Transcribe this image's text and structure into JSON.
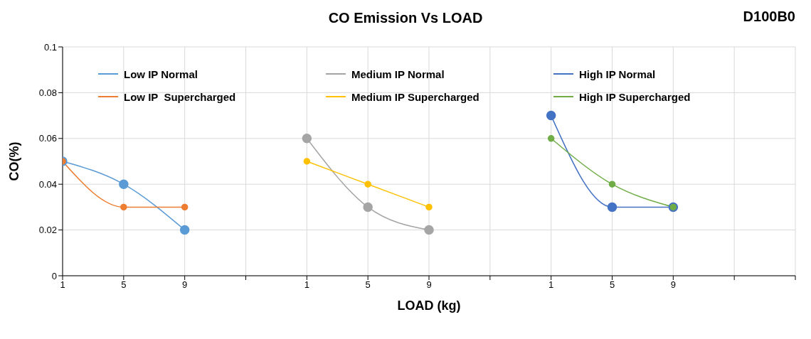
{
  "chart_data": {
    "type": "line",
    "title": "CO Emission  Vs LOAD",
    "xlabel": "LOAD (kg)",
    "ylabel": "CO(%)",
    "annotations": [
      "D100B0"
    ],
    "categories": [
      "1",
      "5",
      "9",
      null,
      "1",
      "5",
      "9",
      null,
      "1",
      "5",
      "9",
      null,
      null
    ],
    "series": [
      {
        "name": "Low IP Normal",
        "color": "#5b9bd5",
        "values": [
          0.05,
          0.04,
          0.02,
          null,
          null,
          null,
          null,
          null,
          null,
          null,
          null,
          null,
          null
        ]
      },
      {
        "name": "Low IP  Supercharged",
        "color": "#ed7d31",
        "values": [
          0.05,
          0.03,
          0.03,
          null,
          null,
          null,
          null,
          null,
          null,
          null,
          null,
          null,
          null
        ]
      },
      {
        "name": "Medium IP Normal",
        "color": "#a5a5a5",
        "values": [
          null,
          null,
          null,
          null,
          0.06,
          0.03,
          0.02,
          null,
          null,
          null,
          null,
          null,
          null
        ]
      },
      {
        "name": "Medium IP Supercharged",
        "color": "#ffc000",
        "values": [
          null,
          null,
          null,
          null,
          0.05,
          0.04,
          0.03,
          null,
          null,
          null,
          null,
          null,
          null
        ]
      },
      {
        "name": "High IP Normal",
        "color": "#4472c4",
        "values": [
          null,
          null,
          null,
          null,
          null,
          null,
          null,
          null,
          0.07,
          0.03,
          0.03,
          null,
          null
        ]
      },
      {
        "name": "High IP Supercharged",
        "color": "#70ad47",
        "values": [
          null,
          null,
          null,
          null,
          null,
          null,
          null,
          null,
          0.06,
          0.04,
          0.03,
          null,
          null
        ]
      }
    ],
    "ylim": [
      0,
      0.1
    ],
    "yticks": [
      0,
      0.02,
      0.04,
      0.06,
      0.08,
      0.1
    ],
    "grid": true,
    "legend": "top",
    "marker": "circle",
    "line_style": "solid"
  }
}
